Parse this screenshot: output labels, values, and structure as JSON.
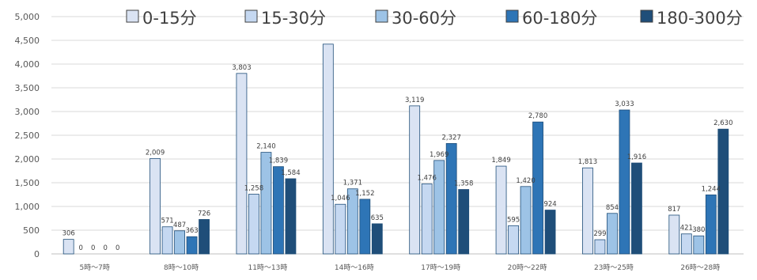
{
  "chart_data": {
    "type": "bar",
    "categories": [
      "5時〜7時",
      "8時〜10時",
      "11時〜13時",
      "14時〜16時",
      "17時〜19時",
      "20時〜22時",
      "23時〜25時",
      "26時〜28時"
    ],
    "series": [
      {
        "name": "0-15分",
        "color": "#dae3f3",
        "values": [
          306,
          2009,
          3803,
          4420,
          3119,
          1849,
          1813,
          817
        ],
        "labels": [
          "306",
          "2,009",
          "3,803",
          "",
          "3,119",
          "1,849",
          "1,813",
          "817"
        ]
      },
      {
        "name": "15-30分",
        "color": "#c5d8f1",
        "values": [
          0,
          571,
          1258,
          1046,
          1476,
          595,
          299,
          421
        ],
        "labels": [
          "0",
          "571",
          "1,258",
          "1,046",
          "1,476",
          "595",
          "299",
          "421"
        ]
      },
      {
        "name": "30-60分",
        "color": "#9dc3e6",
        "values": [
          0,
          487,
          2140,
          1371,
          1969,
          1420,
          854,
          380
        ],
        "labels": [
          "0",
          "487",
          "2,140",
          "1,371",
          "1,969",
          "1,420",
          "854",
          "380"
        ]
      },
      {
        "name": "60-180分",
        "color": "#2e75b6",
        "values": [
          0,
          363,
          1839,
          1152,
          2327,
          2780,
          3033,
          1244
        ],
        "labels": [
          "0",
          "363",
          "1,839",
          "1,152",
          "2,327",
          "2,780",
          "3,033",
          "1,244"
        ]
      },
      {
        "name": "180-300分",
        "color": "#1f4e79",
        "values": [
          0,
          726,
          1584,
          635,
          1358,
          924,
          1916,
          2630
        ],
        "labels": [
          "0",
          "726",
          "1,584",
          "635",
          "1,358",
          "924",
          "1,916",
          "2,630"
        ]
      }
    ],
    "yticks": [
      "0",
      "500",
      "1,000",
      "1,500",
      "2,000",
      "2,500",
      "3,000",
      "3,500",
      "4,000",
      "4,500",
      "5,000"
    ],
    "ylim": [
      0,
      5000
    ],
    "grid": true,
    "legend_position": "top"
  }
}
